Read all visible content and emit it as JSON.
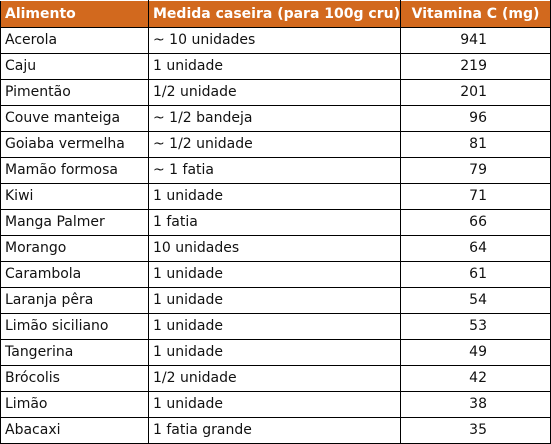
{
  "colors": {
    "header_bg": "#d2691e",
    "header_text": "#ffffff",
    "border": "#000000"
  },
  "table": {
    "headers": [
      "Alimento",
      "Medida caseira (para 100g cru)",
      "Vitamina C (mg)"
    ],
    "rows": [
      [
        "Acerola",
        "~ 10 unidades",
        "941"
      ],
      [
        "Caju",
        "1 unidade",
        "219"
      ],
      [
        "Pimentão",
        "1/2 unidade",
        "201"
      ],
      [
        "Couve manteiga",
        "~ 1/2 bandeja",
        "96"
      ],
      [
        "Goiaba vermelha",
        "~ 1/2 unidade",
        "81"
      ],
      [
        "Mamão formosa",
        "~ 1 fatia",
        "79"
      ],
      [
        "Kiwi",
        "1 unidade",
        "71"
      ],
      [
        "Manga Palmer",
        "1 fatia",
        "66"
      ],
      [
        "Morango",
        "10 unidades",
        "64"
      ],
      [
        "Carambola",
        "1 unidade",
        "61"
      ],
      [
        "Laranja pêra",
        "1 unidade",
        "54"
      ],
      [
        "Limão siciliano",
        "1 unidade",
        "53"
      ],
      [
        "Tangerina",
        "1 unidade",
        "49"
      ],
      [
        "Brócolis",
        "1/2 unidade",
        "42"
      ],
      [
        "Limão",
        "1 unidade",
        "38"
      ],
      [
        "Abacaxi",
        "1 fatia grande",
        "35"
      ]
    ]
  }
}
